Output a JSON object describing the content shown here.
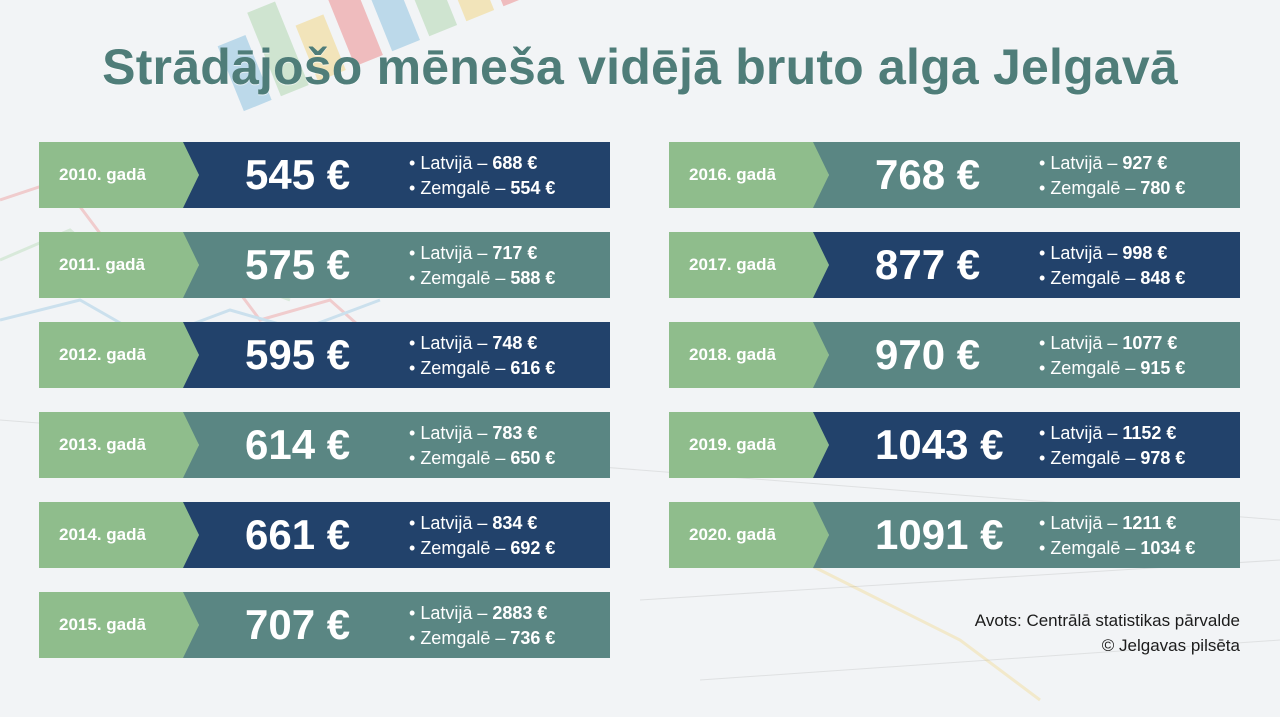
{
  "title": "Strādājošo mēneša vidējā bruto alga Jelgavā",
  "labels": {
    "latvija": "Latvijā – ",
    "zemgale": "Zemgalē – "
  },
  "colors": {
    "title": "#4f7d79",
    "year_bg": "#8fbd8c",
    "dark": "#22426b",
    "teal": "#5a8683"
  },
  "rows": [
    {
      "year": "2010. gadā",
      "amount": "545 €",
      "latvija": "688 €",
      "zemgale": "554 €",
      "style": "dark"
    },
    {
      "year": "2011. gadā",
      "amount": "575 €",
      "latvija": "717 €",
      "zemgale": "588 €",
      "style": "teal"
    },
    {
      "year": "2012. gadā",
      "amount": "595 €",
      "latvija": "748 €",
      "zemgale": "616 €",
      "style": "dark"
    },
    {
      "year": "2013. gadā",
      "amount": "614 €",
      "latvija": "783 €",
      "zemgale": "650 €",
      "style": "teal"
    },
    {
      "year": "2014. gadā",
      "amount": "661 €",
      "latvija": "834 €",
      "zemgale": "692 €",
      "style": "dark"
    },
    {
      "year": "2015. gadā",
      "amount": "707 €",
      "latvija": "2883 €",
      "zemgale": "736 €",
      "style": "teal"
    },
    {
      "year": "2016. gadā",
      "amount": "768 €",
      "latvija": "927 €",
      "zemgale": "780 €",
      "style": "teal"
    },
    {
      "year": "2017. gadā",
      "amount": "877 €",
      "latvija": "998 €",
      "zemgale": "848 €",
      "style": "dark"
    },
    {
      "year": "2018. gadā",
      "amount": "970 €",
      "latvija": "1077 €",
      "zemgale": "915 €",
      "style": "teal"
    },
    {
      "year": "2019. gadā",
      "amount": "1043 €",
      "latvija": "1152 €",
      "zemgale": "978 €",
      "style": "dark"
    },
    {
      "year": "2020. gadā",
      "amount": "1091 €",
      "latvija": "1211 €",
      "zemgale": "1034 €",
      "style": "teal"
    }
  ],
  "source": {
    "line1": "Avots: Centrālā statistikas pārvalde",
    "line2": "© Jelgavas pilsēta"
  }
}
